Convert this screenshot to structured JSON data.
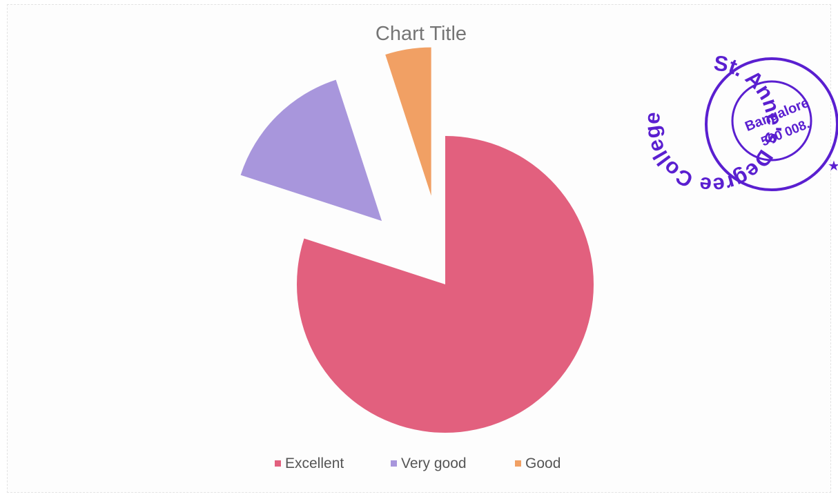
{
  "chart_data": {
    "type": "pie",
    "title": "Chart Title",
    "categories": [
      "Excellent",
      "Very good",
      "Good"
    ],
    "values": [
      80,
      15,
      5
    ],
    "colors": [
      "#e2607e",
      "#a896dc",
      "#f1a064"
    ],
    "exploded": [
      false,
      true,
      true
    ],
    "legend": "bottom"
  },
  "stamp": {
    "outer_text": "St. Anne's Degree College",
    "inner_line1": "Bangalore",
    "inner_line2": "560 008.",
    "color": "#5a1fd0"
  }
}
